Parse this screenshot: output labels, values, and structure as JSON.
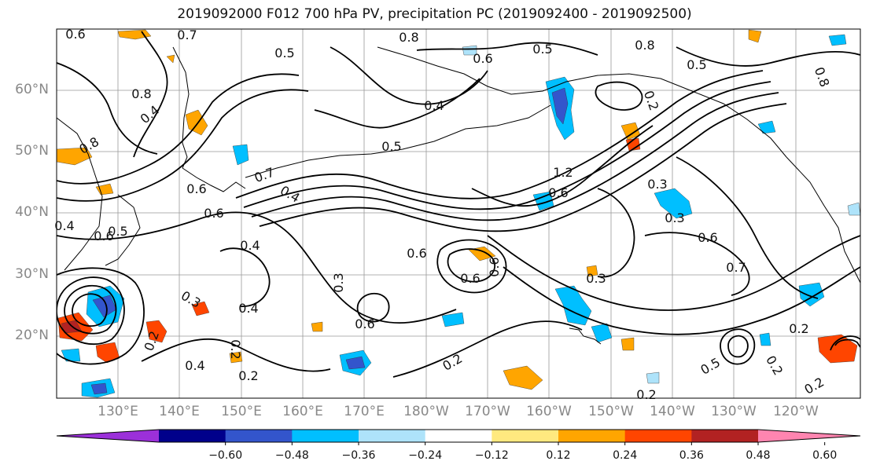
{
  "title": "2019092000 F012 700 hPa PV, precipitation PC (2019092400 - 2019092500)",
  "lat_labels": [
    "60°N",
    "50°N",
    "40°N",
    "30°N",
    "20°N"
  ],
  "lon_labels": [
    "130°E",
    "140°E",
    "150°E",
    "160°E",
    "170°E",
    "180°W",
    "170°W",
    "160°W",
    "150°W",
    "140°W",
    "130°W",
    "120°W"
  ],
  "colorbar": {
    "ticks": [
      "−0.60",
      "−0.48",
      "−0.36",
      "−0.24",
      "−0.12",
      "0.12",
      "0.24",
      "0.36",
      "0.48",
      "0.60"
    ],
    "colors": [
      "#9b30d9",
      "#00008b",
      "#3355cc",
      "#00bfff",
      "#aee3fa",
      "#ffffff",
      "#ffe97f",
      "#ffa500",
      "#ff4500",
      "#b22222",
      "#ff85b0"
    ]
  },
  "contour_labels": [
    {
      "text": "0.6"
    },
    {
      "text": "0.7"
    },
    {
      "text": "0.5"
    },
    {
      "text": "0.8"
    },
    {
      "text": "0.6"
    },
    {
      "text": "0.5"
    },
    {
      "text": "0.8"
    },
    {
      "text": "0.5"
    },
    {
      "text": "0.8"
    },
    {
      "text": "0.2"
    },
    {
      "text": "0.4"
    },
    {
      "text": "0.8"
    },
    {
      "text": "0.4"
    },
    {
      "text": "0.5"
    },
    {
      "text": "0.8"
    },
    {
      "text": "0.6"
    },
    {
      "text": "0.7"
    },
    {
      "text": "0.4"
    },
    {
      "text": "0.6"
    },
    {
      "text": "0.6"
    },
    {
      "text": "1.2"
    },
    {
      "text": "0.6"
    },
    {
      "text": "0.3"
    },
    {
      "text": "0.3"
    },
    {
      "text": "0.4"
    },
    {
      "text": "0.5"
    },
    {
      "text": "0.4"
    },
    {
      "text": "0.6"
    },
    {
      "text": "0.3"
    },
    {
      "text": "0.6"
    },
    {
      "text": "0.6"
    },
    {
      "text": "0.3"
    },
    {
      "text": "0.3"
    },
    {
      "text": "0.4"
    },
    {
      "text": "0.6"
    },
    {
      "text": "0.2"
    },
    {
      "text": "0.4"
    },
    {
      "text": "0.2"
    },
    {
      "text": "0.2"
    },
    {
      "text": "0.5"
    },
    {
      "text": "0.2"
    },
    {
      "text": "0.2"
    },
    {
      "text": "0.2"
    },
    {
      "text": "0.6"
    },
    {
      "text": "0.7"
    },
    {
      "text": "0.2"
    },
    {
      "text": "0.2"
    }
  ]
}
